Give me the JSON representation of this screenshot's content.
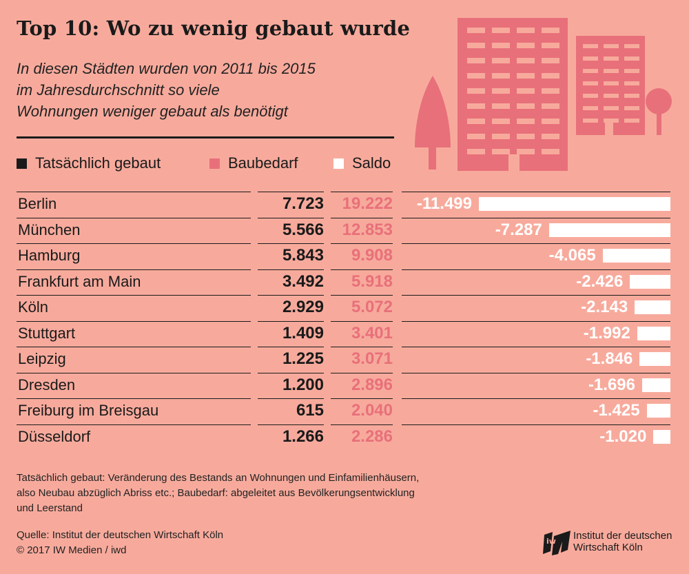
{
  "title": "Top 10: Wo zu wenig gebaut wurde",
  "subtitle_lines": [
    "In diesen Städten wurden von 2011 bis 2015",
    "im Jahresdurchschnitt so viele",
    "Wohnungen weniger gebaut als benötigt"
  ],
  "legend": {
    "built": "Tatsächlich gebaut",
    "need": "Baubedarf",
    "balance": "Saldo"
  },
  "colors": {
    "background": "#f7aa9c",
    "built": "#1a1a1a",
    "need": "#e8707a",
    "balance": "#ffffff"
  },
  "chart_data": {
    "type": "table",
    "columns": [
      "Tatsächlich gebaut",
      "Baubedarf",
      "Saldo"
    ],
    "rows": [
      {
        "city": "Berlin",
        "built": "7.723",
        "need": "19.222",
        "balance": "-11.499",
        "saldo_value": -11499
      },
      {
        "city": "München",
        "built": "5.566",
        "need": "12.853",
        "balance": "-7.287",
        "saldo_value": -7287
      },
      {
        "city": "Hamburg",
        "built": "5.843",
        "need": "9.908",
        "balance": "-4.065",
        "saldo_value": -4065
      },
      {
        "city": "Frankfurt am Main",
        "built": "3.492",
        "need": "5.918",
        "balance": "-2.426",
        "saldo_value": -2426
      },
      {
        "city": "Köln",
        "built": "2.929",
        "need": "5.072",
        "balance": "-2.143",
        "saldo_value": -2143
      },
      {
        "city": "Stuttgart",
        "built": "1.409",
        "need": "3.401",
        "balance": "-1.992",
        "saldo_value": -1992
      },
      {
        "city": "Leipzig",
        "built": "1.225",
        "need": "3.071",
        "balance": "-1.846",
        "saldo_value": -1846
      },
      {
        "city": "Dresden",
        "built": "1.200",
        "need": "2.896",
        "balance": "-1.696",
        "saldo_value": -1696
      },
      {
        "city": "Freiburg im Breisgau",
        "built": "615",
        "need": "2.040",
        "balance": "-1.425",
        "saldo_value": -1425
      },
      {
        "city": "Düsseldorf",
        "built": "1.266",
        "need": "2.286",
        "balance": "-1.020",
        "saldo_value": -1020
      }
    ]
  },
  "footnote_lines": [
    "Tatsächlich gebaut: Veränderung des Bestands an Wohnungen und Einfamilienhäusern,",
    "also Neubau abzüglich Abriss etc.; Baubedarf: abgeleitet aus Bevölkerungsentwicklung",
    "und Leerstand"
  ],
  "source_lines": [
    "Quelle: Institut der deutschen Wirtschaft Köln",
    "© 2017 IW Medien / iwd"
  ],
  "logo": {
    "mark": "iw",
    "line1": "Institut der deutschen",
    "line2": "Wirtschaft Köln"
  }
}
